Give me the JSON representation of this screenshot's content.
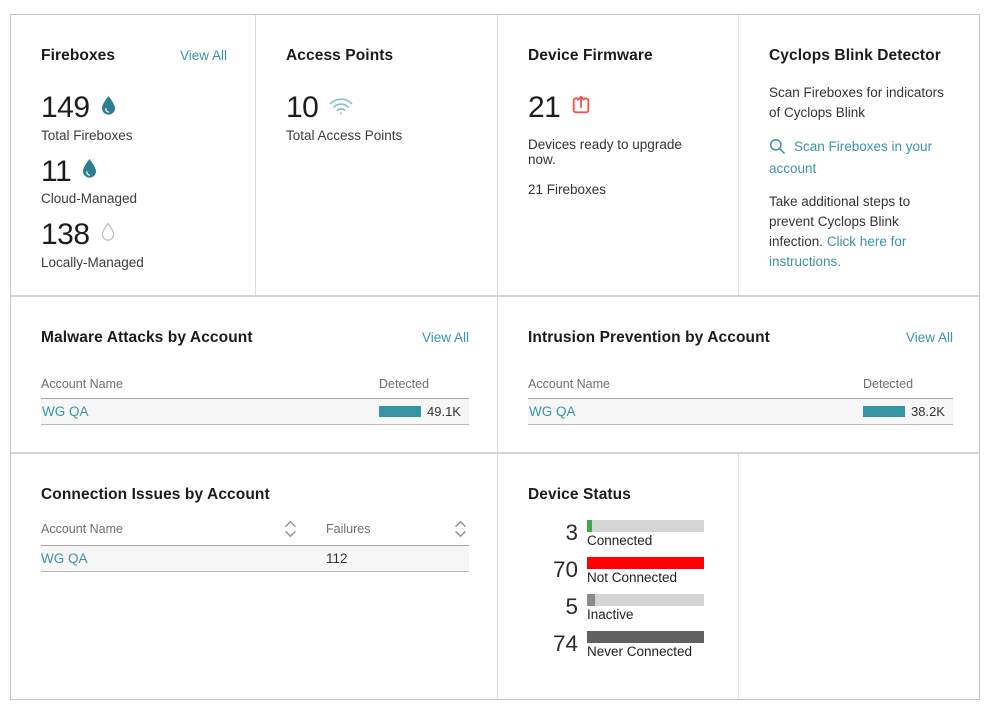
{
  "theme": {
    "teal": "#3c93a7",
    "bar_teal": "#3793a6",
    "flame_teal": "#2d7f90",
    "wifi_teal": "#8cc0cd",
    "coral": "#f0544f",
    "track_gray": "#d5d5d5"
  },
  "cards": {
    "fireboxes": {
      "title": "Fireboxes",
      "view_all": "View All",
      "stats": [
        {
          "value": "149",
          "label": "Total Fireboxes",
          "icon": "flame-icon-filled"
        },
        {
          "value": "11",
          "label": "Cloud-Managed",
          "icon": "flame-icon-filled"
        },
        {
          "value": "138",
          "label": "Locally-Managed",
          "icon": "flame-icon-outline"
        }
      ]
    },
    "access_points": {
      "title": "Access Points",
      "value": "10",
      "label": "Total Access Points",
      "icon": "wifi-icon"
    },
    "device_firmware": {
      "title": "Device Firmware",
      "value": "21",
      "icon": "upgrade-icon",
      "message": "Devices ready to upgrade now.",
      "detail": "21 Fireboxes"
    },
    "cyclops": {
      "title": "Cyclops Blink Detector",
      "description": "Scan Fireboxes for indicators of Cyclops Blink",
      "scan_link": "Scan Fireboxes in your account",
      "scan_icon": "search-icon",
      "note": "Take additional steps to prevent Cyclops Blink infection.",
      "instructions_link": "Click here for instructions."
    },
    "malware": {
      "title": "Malware Attacks by Account",
      "view_all": "View All",
      "col_account": "Account Name",
      "col_value": "Detected",
      "rows": [
        {
          "account": "WG QA",
          "value": "49.1K",
          "percent": 100
        }
      ]
    },
    "intrusion": {
      "title": "Intrusion Prevention by Account",
      "view_all": "View All",
      "col_account": "Account Name",
      "col_value": "Detected",
      "rows": [
        {
          "account": "WG QA",
          "value": "38.2K",
          "percent": 100
        }
      ]
    },
    "connection": {
      "title": "Connection Issues by Account",
      "col_account": "Account Name",
      "col_failures": "Failures",
      "rows": [
        {
          "account": "WG QA",
          "failures": "112"
        }
      ]
    },
    "device_status": {
      "title": "Device Status",
      "items": [
        {
          "count": "3",
          "label": "Connected",
          "percent": 4.3,
          "color": "#3faa4b"
        },
        {
          "count": "70",
          "label": "Not Connected",
          "percent": 100,
          "color": "#ff0000"
        },
        {
          "count": "5",
          "label": "Inactive",
          "percent": 6.8,
          "color": "#8c8c8c"
        },
        {
          "count": "74",
          "label": "Never Connected",
          "percent": 100,
          "color": "#616161"
        }
      ]
    }
  }
}
